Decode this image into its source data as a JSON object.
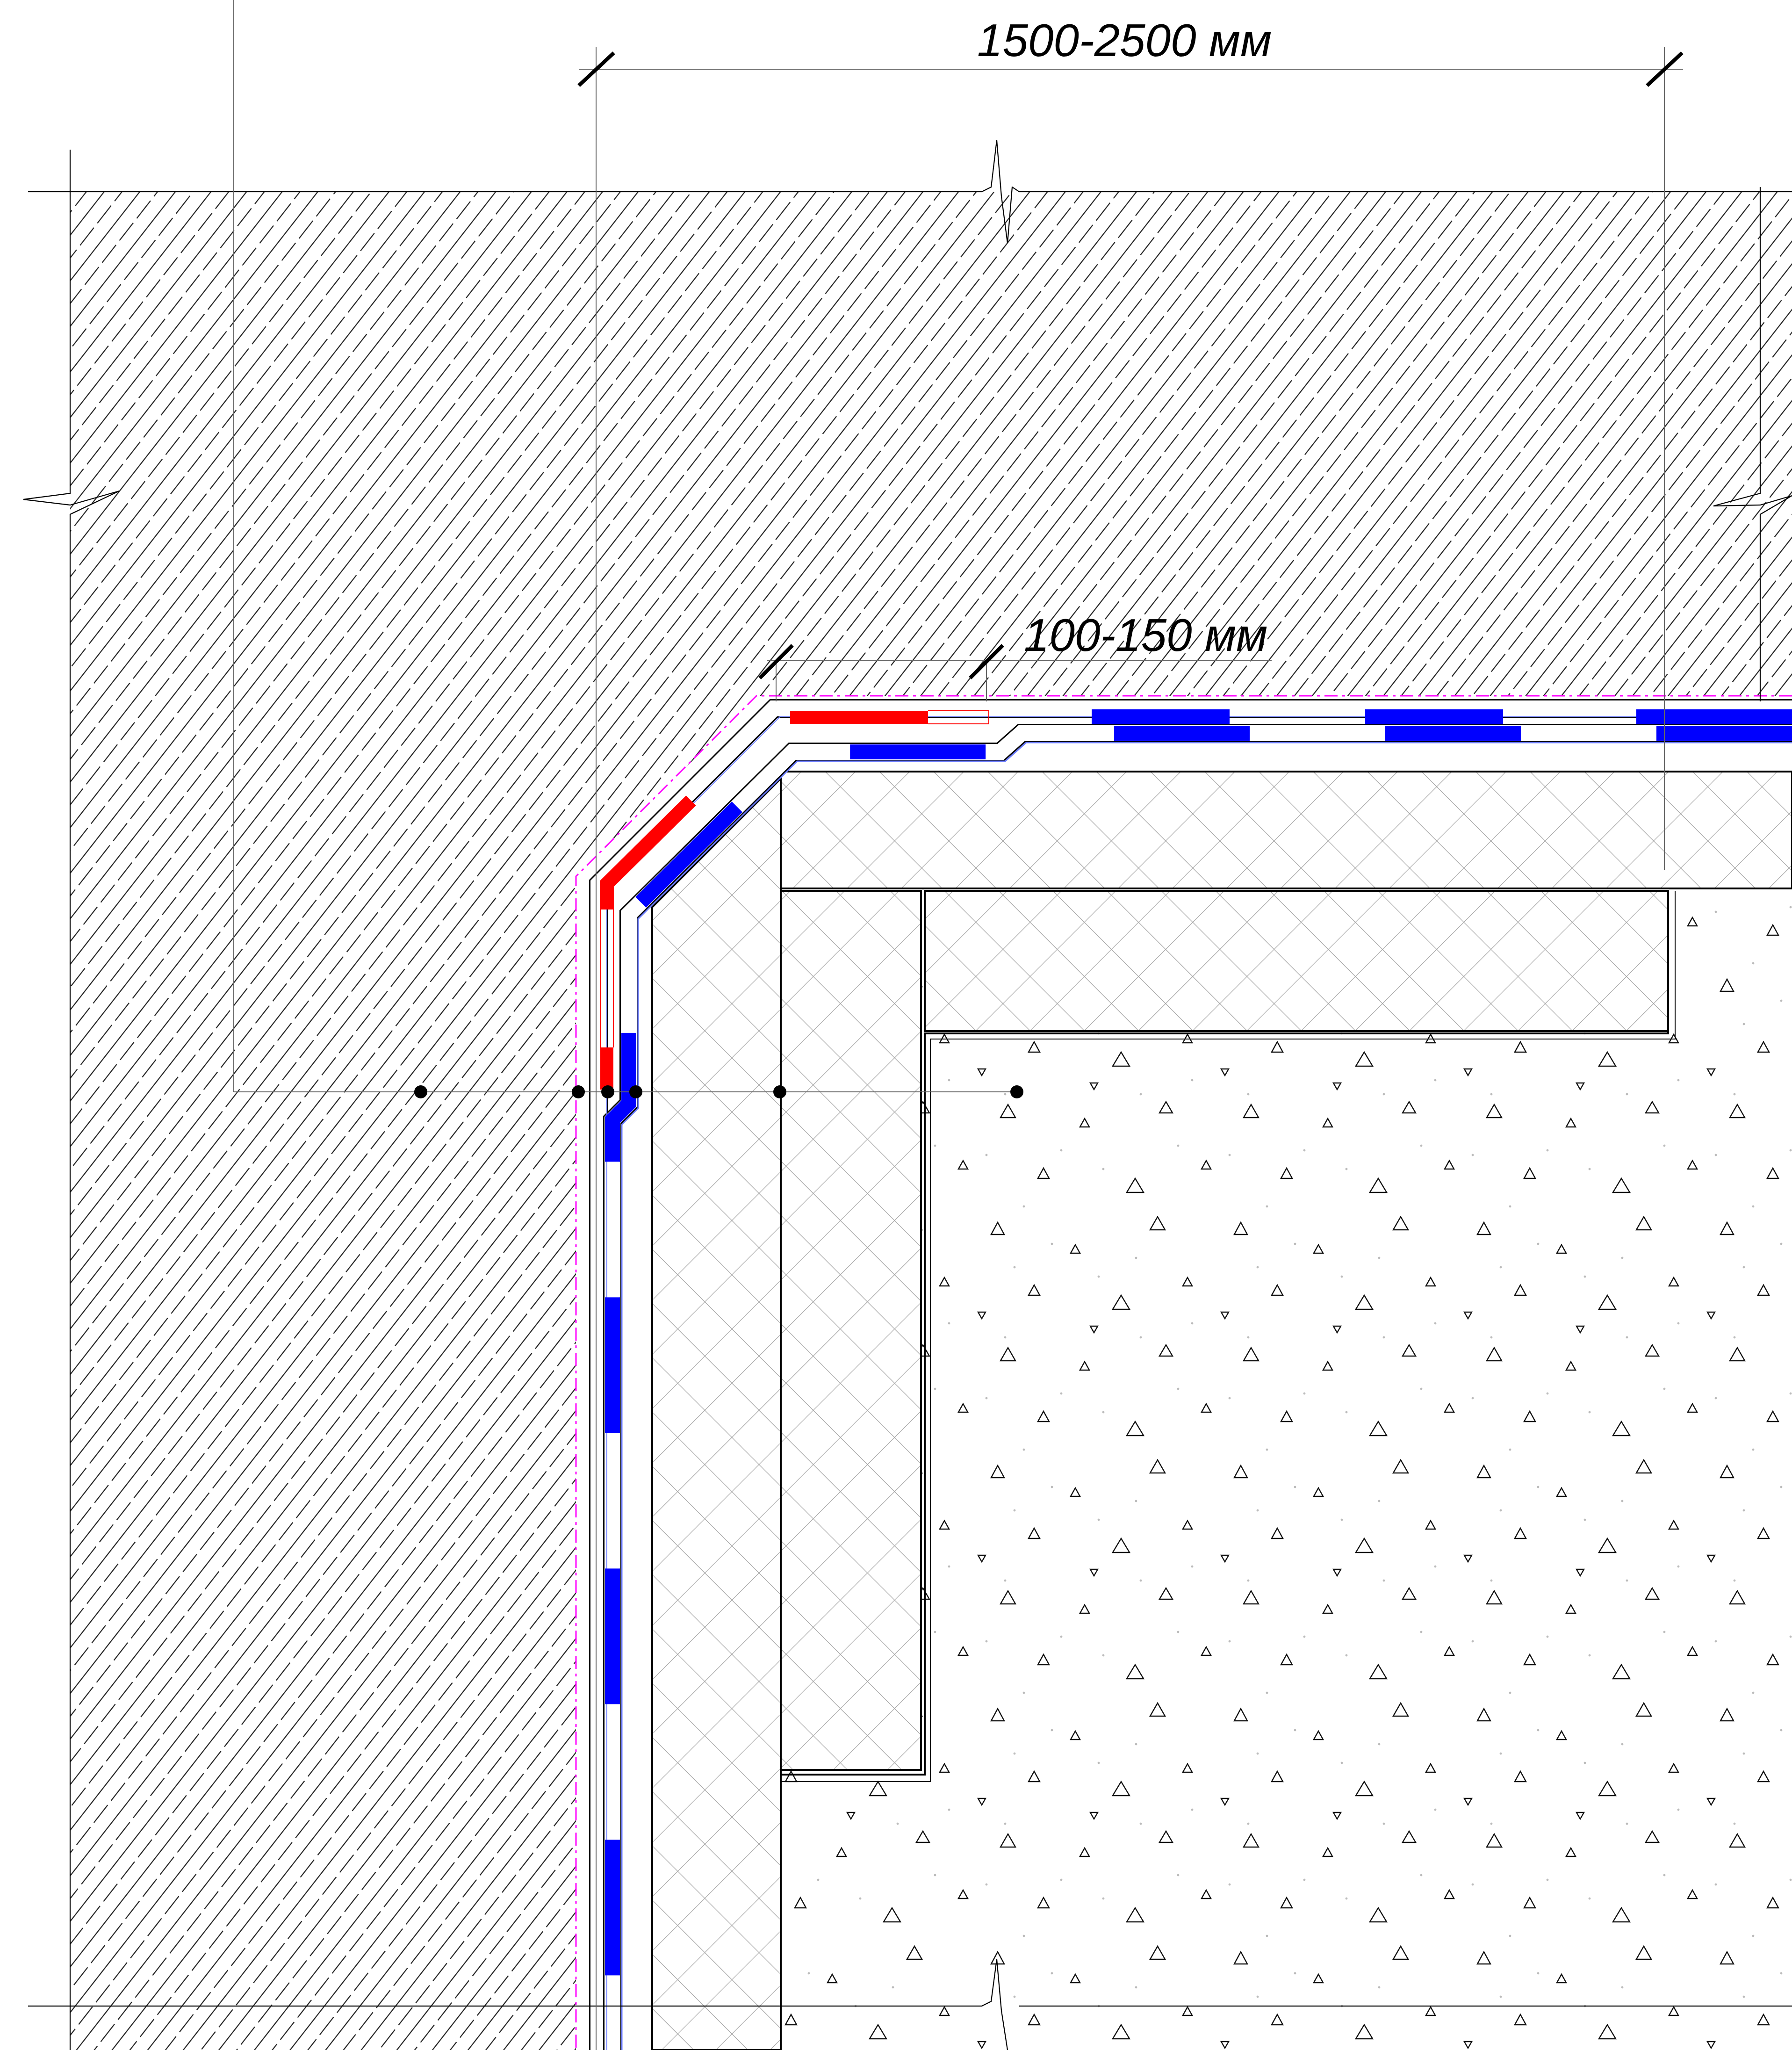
{
  "drawing": {
    "dimensions": {
      "outer": "1500-2500 мм",
      "inner": "100-150 мм"
    },
    "materials": {
      "soil": "hatched earth",
      "insulation": "cross-hatched insulation board",
      "concrete": "concrete slab"
    },
    "colors": {
      "line": "#000000",
      "waterproofing_primary": "#0000ff",
      "waterproofing_reinforcement": "#ff0000",
      "protective_membrane": "#ff00ff",
      "thin_line": "#6b7cff"
    }
  }
}
